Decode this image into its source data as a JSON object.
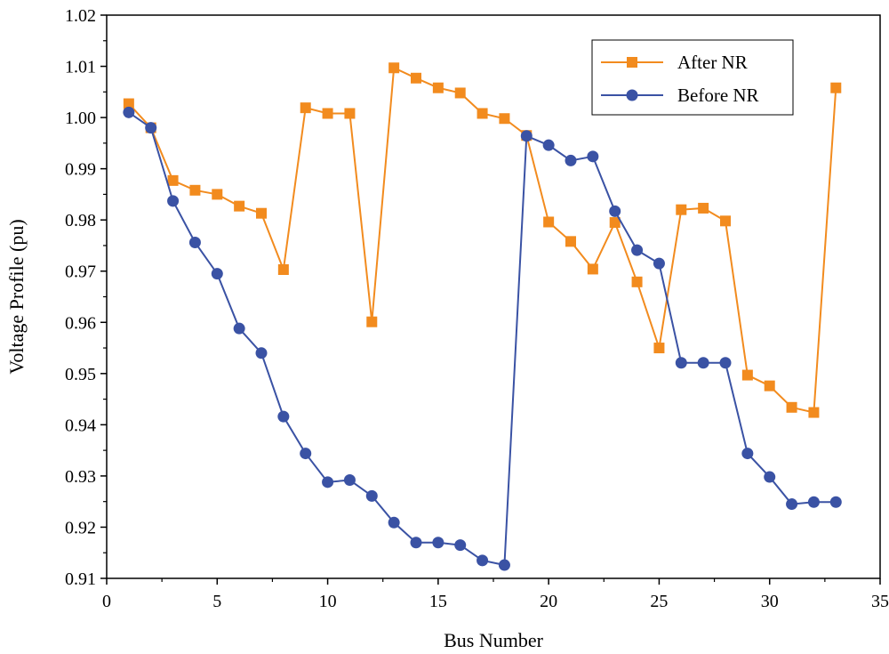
{
  "chart_data": {
    "type": "line",
    "title": "",
    "xlabel": "Bus Number",
    "ylabel": "Voltage Profile (pu)",
    "xlim": [
      0,
      35
    ],
    "ylim": [
      0.91,
      1.02
    ],
    "xticks": [
      0,
      5,
      10,
      15,
      20,
      25,
      30,
      35
    ],
    "yticks": [
      0.91,
      0.92,
      0.93,
      0.94,
      0.95,
      0.96,
      0.97,
      0.98,
      0.99,
      1.0,
      1.01,
      1.02
    ],
    "ytick_labels": [
      "0.91",
      "0.92",
      "0.93",
      "0.94",
      "0.95",
      "0.96",
      "0.97",
      "0.98",
      "0.99",
      "1.00",
      "1.01",
      "1.02"
    ],
    "grid": false,
    "legend_position": "top-right",
    "series": [
      {
        "name": "After NR",
        "color": "#f28b1e",
        "marker": "square",
        "x": [
          1,
          2,
          3,
          4,
          5,
          6,
          7,
          8,
          9,
          10,
          11,
          12,
          13,
          14,
          15,
          16,
          17,
          18,
          19,
          20,
          21,
          22,
          23,
          24,
          25,
          26,
          27,
          28,
          29,
          30,
          31,
          32,
          33
        ],
        "values": [
          1.0027,
          0.998,
          0.9877,
          0.9858,
          0.985,
          0.9827,
          0.9813,
          0.9703,
          1.0019,
          1.0008,
          1.0008,
          0.9601,
          1.0097,
          1.0077,
          1.0058,
          1.0048,
          1.0008,
          0.9998,
          0.9965,
          0.9796,
          0.9758,
          0.9704,
          0.9795,
          0.9679,
          0.955,
          0.982,
          0.9823,
          0.9798,
          0.9497,
          0.9476,
          0.9434,
          0.9424,
          1.0058
        ]
      },
      {
        "name": "Before NR",
        "color": "#3a52a4",
        "marker": "circle",
        "x": [
          1,
          2,
          3,
          4,
          5,
          6,
          7,
          8,
          9,
          10,
          11,
          12,
          13,
          14,
          15,
          16,
          17,
          18,
          19,
          20,
          21,
          22,
          23,
          24,
          25,
          26,
          27,
          28,
          29,
          30,
          31,
          32,
          33
        ],
        "values": [
          1.001,
          0.998,
          0.9837,
          0.9756,
          0.9695,
          0.9588,
          0.954,
          0.9416,
          0.9344,
          0.9288,
          0.9292,
          0.9261,
          0.9209,
          0.917,
          0.917,
          0.9165,
          0.9135,
          0.9126,
          0.9964,
          0.9946,
          0.9916,
          0.9924,
          0.9817,
          0.9741,
          0.9715,
          0.9521,
          0.9521,
          0.9521,
          0.9344,
          0.9298,
          0.9245,
          0.9249,
          0.9249
        ]
      }
    ]
  }
}
